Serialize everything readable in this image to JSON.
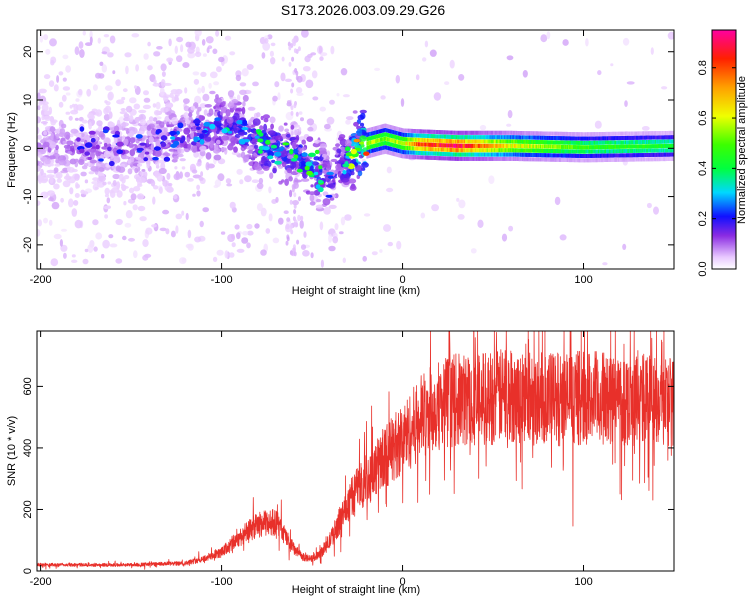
{
  "title": "S173.2026.003.09.29.G26",
  "chart_data": [
    {
      "type": "heatmap",
      "title": "S173.2026.003.09.29.G26",
      "xlabel": "Height of straight line (km)",
      "ylabel": "Frequency (Hz)",
      "xlim": [
        -202,
        150
      ],
      "ylim": [
        -25,
        24.5
      ],
      "xticks": [
        -200,
        -100,
        0,
        100
      ],
      "yticks": [
        -20,
        -10,
        0,
        10,
        20
      ],
      "colorbar": {
        "label": "Normalized spectral amplitude",
        "range": [
          0,
          0.95
        ],
        "ticks": [
          "0.0",
          "0.2",
          "0.4",
          "0.6",
          "0.8"
        ]
      },
      "ridge": [
        {
          "x": -200,
          "f": 0,
          "amp": 0.12
        },
        {
          "x": -150,
          "f": 0,
          "amp": 0.14
        },
        {
          "x": -110,
          "f": 3,
          "amp": 0.18
        },
        {
          "x": -100,
          "f": 5,
          "amp": 0.22
        },
        {
          "x": -90,
          "f": 4,
          "amp": 0.22
        },
        {
          "x": -80,
          "f": 1,
          "amp": 0.26
        },
        {
          "x": -70,
          "f": 0,
          "amp": 0.28
        },
        {
          "x": -60,
          "f": -1,
          "amp": 0.25
        },
        {
          "x": -50,
          "f": -4,
          "amp": 0.3
        },
        {
          "x": -40,
          "f": -6,
          "amp": 0.22
        },
        {
          "x": -30,
          "f": -2,
          "amp": 0.3
        },
        {
          "x": -20,
          "f": 1,
          "amp": 0.6
        },
        {
          "x": -10,
          "f": 2,
          "amp": 0.55
        },
        {
          "x": 0,
          "f": 1,
          "amp": 0.6
        },
        {
          "x": 10,
          "f": 0.8,
          "amp": 0.85
        },
        {
          "x": 30,
          "f": 0.5,
          "amp": 0.92
        },
        {
          "x": 60,
          "f": 0.5,
          "amp": 0.65
        },
        {
          "x": 100,
          "f": 0.2,
          "amp": 0.5
        },
        {
          "x": 150,
          "f": 0.5,
          "amp": 0.45
        }
      ]
    },
    {
      "type": "line",
      "xlabel": "Height of straight line (km)",
      "ylabel": "SNR (10 * v/v)",
      "xlim": [
        -202,
        150
      ],
      "ylim": [
        0,
        780
      ],
      "xticks": [
        -200,
        -100,
        0,
        100
      ],
      "yticks": [
        0,
        200,
        400,
        600
      ],
      "color": "#e8302a",
      "series": [
        {
          "x": [
            -200,
            -150,
            -120,
            -110,
            -100,
            -90,
            -80,
            -70,
            -60,
            -55,
            -50,
            -45,
            -40,
            -35,
            -30,
            -25,
            -20,
            -15,
            -10,
            -5,
            0,
            5,
            10,
            20,
            30,
            40,
            50,
            60,
            70,
            80,
            90,
            100,
            110,
            120,
            130,
            140,
            150
          ],
          "y": [
            20,
            20,
            25,
            40,
            60,
            110,
            150,
            160,
            70,
            45,
            40,
            60,
            100,
            160,
            220,
            270,
            290,
            330,
            370,
            400,
            430,
            460,
            500,
            540,
            555,
            560,
            565,
            570,
            565,
            560,
            560,
            565,
            560,
            560,
            555,
            560,
            555
          ]
        }
      ]
    }
  ]
}
